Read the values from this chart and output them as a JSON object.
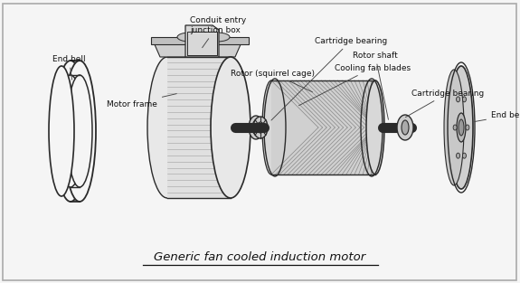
{
  "title": "Generic fan cooled induction motor",
  "bg_color": "#f5f5f5",
  "border_color": "#aaaaaa",
  "draw_color": "#2a2a2a",
  "annotations": [
    {
      "text": "End bell",
      "txt": [
        58,
        248
      ],
      "arr": [
        80,
        222
      ]
    },
    {
      "text": "Conduit entry\njunction box",
      "txt": [
        210,
        285
      ],
      "arr": [
        222,
        258
      ]
    },
    {
      "text": "Cartridge bearing",
      "txt": [
        348,
        268
      ],
      "arr": [
        298,
        178
      ]
    },
    {
      "text": "Cooling fan blades",
      "txt": [
        370,
        238
      ],
      "arr": [
        328,
        195
      ]
    },
    {
      "text": "Cartridge bearing",
      "txt": [
        455,
        210
      ],
      "arr": [
        446,
        182
      ]
    },
    {
      "text": "End bell",
      "txt": [
        543,
        185
      ],
      "arr": [
        522,
        178
      ]
    },
    {
      "text": "Motor frame",
      "txt": [
        118,
        198
      ],
      "arr": [
        198,
        210
      ]
    },
    {
      "text": "Rotor (squirrel cage)",
      "txt": [
        255,
        232
      ],
      "arr": [
        348,
        210
      ]
    },
    {
      "text": "Rotor shaft",
      "txt": [
        390,
        252
      ],
      "arr": [
        430,
        178
      ]
    }
  ]
}
